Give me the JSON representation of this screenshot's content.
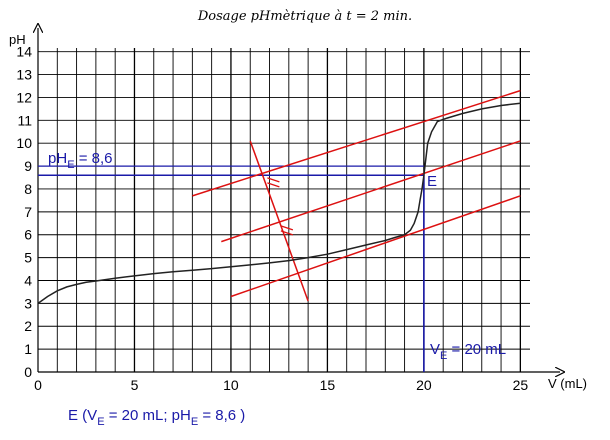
{
  "chart_data": {
    "type": "line",
    "title": "Dosage pHmètrique à t = 2 min.",
    "ylabel": "pH",
    "xlabel": "V (mL)",
    "xlim": [
      0,
      25.5
    ],
    "ylim": [
      0,
      14.6
    ],
    "x_ticks": [
      0,
      5,
      10,
      15,
      20,
      25
    ],
    "y_ticks": [
      0,
      1,
      2,
      3,
      4,
      5,
      6,
      7,
      8,
      9,
      10,
      11,
      12,
      13,
      14
    ],
    "grid": true,
    "series": [
      {
        "name": "",
        "color": "#222222",
        "points": [
          [
            0,
            3.0
          ],
          [
            0.5,
            3.3
          ],
          [
            1,
            3.55
          ],
          [
            1.5,
            3.72
          ],
          [
            2,
            3.83
          ],
          [
            2.5,
            3.92
          ],
          [
            3,
            3.98
          ],
          [
            4,
            4.1
          ],
          [
            5,
            4.2
          ],
          [
            6,
            4.3
          ],
          [
            7,
            4.38
          ],
          [
            8,
            4.45
          ],
          [
            9,
            4.52
          ],
          [
            10,
            4.6
          ],
          [
            11,
            4.68
          ],
          [
            12,
            4.77
          ],
          [
            13,
            4.87
          ],
          [
            14,
            5.0
          ],
          [
            15,
            5.15
          ],
          [
            16,
            5.35
          ],
          [
            17,
            5.55
          ],
          [
            18,
            5.75
          ],
          [
            18.5,
            5.88
          ],
          [
            19,
            6.0
          ],
          [
            19.3,
            6.2
          ],
          [
            19.5,
            6.5
          ],
          [
            19.7,
            7.0
          ],
          [
            19.8,
            7.5
          ],
          [
            19.9,
            8.0
          ],
          [
            20,
            8.6
          ],
          [
            20.1,
            9.3
          ],
          [
            20.2,
            10.0
          ],
          [
            20.4,
            10.5
          ],
          [
            20.7,
            10.95
          ],
          [
            21.2,
            11.1
          ],
          [
            22,
            11.3
          ],
          [
            23,
            11.5
          ],
          [
            24,
            11.65
          ],
          [
            25,
            11.75
          ]
        ]
      }
    ],
    "tangents": [
      {
        "color": "#dd1111",
        "from": [
          8,
          7.7
        ],
        "to": [
          25,
          12.3
        ]
      },
      {
        "color": "#dd1111",
        "from": [
          9.5,
          5.7
        ],
        "to": [
          25,
          10.1
        ]
      },
      {
        "color": "#dd1111",
        "from": [
          10,
          3.3
        ],
        "to": [
          25,
          7.7
        ]
      },
      {
        "color": "#dd1111",
        "from": [
          11,
          10.1
        ],
        "to": [
          14,
          3.1
        ]
      }
    ],
    "equivalence": {
      "point_label": "E",
      "ve": 20,
      "phe": 8.6,
      "guide_color": "#1a1aa8",
      "phe_label_main": "pH",
      "phe_label_sub": "E",
      "phe_label_tail": " = 8,6",
      "ve_label_main": "V",
      "ve_label_sub": "E",
      "ve_label_tail": " = 20 mL",
      "summary_parts": [
        "E (V",
        "E",
        " = 20 mL; pH",
        "E",
        " = 8,6 )"
      ]
    }
  }
}
